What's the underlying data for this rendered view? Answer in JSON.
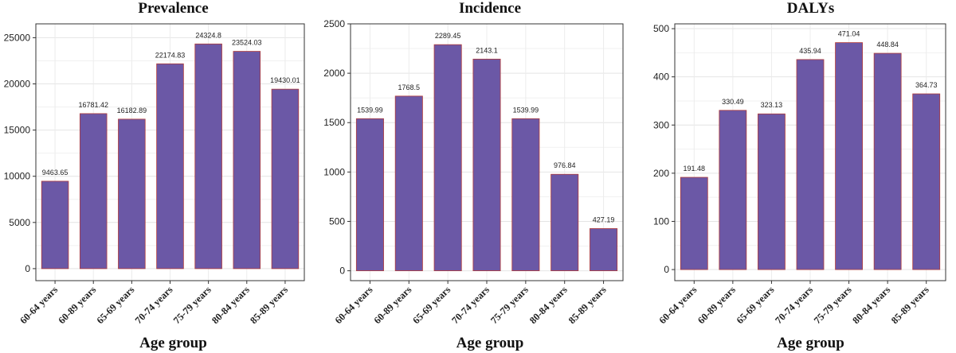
{
  "chart_data": [
    {
      "type": "bar",
      "title": "Prevalence",
      "xlabel": "Age group",
      "ylabel": "",
      "categories": [
        "60-64 years",
        "60-89 years",
        "65-69 years",
        "70-74 years",
        "75-79 years",
        "80-84 years",
        "85-89 years"
      ],
      "values": [
        9463.65,
        16781.42,
        16182.89,
        22174.83,
        24324.8,
        23524.03,
        19430.01
      ],
      "value_labels": [
        "9463.65",
        "16781.42",
        "16182.89",
        "22174.83",
        "24324.8",
        "23524.03",
        "19430.01"
      ],
      "ylim": [
        -1300,
        26500
      ],
      "yticks": [
        0,
        5000,
        10000,
        15000,
        20000,
        25000
      ],
      "bar_color": "#6b58a6",
      "bar_edge_color": "#b03a3a",
      "grid": true
    },
    {
      "type": "bar",
      "title": "Incidence",
      "xlabel": "Age group",
      "ylabel": "",
      "categories": [
        "60-64 years",
        "60-89 years",
        "65-69 years",
        "70-74 years",
        "75-79 years",
        "80-84 years",
        "85-89 years"
      ],
      "values": [
        1539.99,
        1768.5,
        2289.45,
        2143.1,
        1539.99,
        976.84,
        427.19
      ],
      "value_labels": [
        "1539.99",
        "1768.5",
        "2289.45",
        "2143.1",
        "1539.99",
        "976.84",
        "427.19"
      ],
      "ylim": [
        -100,
        2500
      ],
      "yticks": [
        0,
        500,
        1000,
        1500,
        2000,
        2500
      ],
      "bar_color": "#6b58a6",
      "bar_edge_color": "#b03a3a",
      "grid": true
    },
    {
      "type": "bar",
      "title": "DALYs",
      "xlabel": "Age group",
      "ylabel": "",
      "categories": [
        "60-64 years",
        "60-89 years",
        "65-69 years",
        "70-74 years",
        "75-79 years",
        "80-84 years",
        "85-89 years"
      ],
      "values": [
        191.48,
        330.49,
        323.13,
        435.94,
        471.04,
        448.84,
        364.73
      ],
      "value_labels": [
        "191.48",
        "330.49",
        "323.13",
        "435.94",
        "471.04",
        "448.84",
        "364.73"
      ],
      "ylim": [
        -23,
        510
      ],
      "yticks": [
        0,
        100,
        200,
        300,
        400,
        500
      ],
      "bar_color": "#6b58a6",
      "bar_edge_color": "#b03a3a",
      "grid": true
    }
  ]
}
